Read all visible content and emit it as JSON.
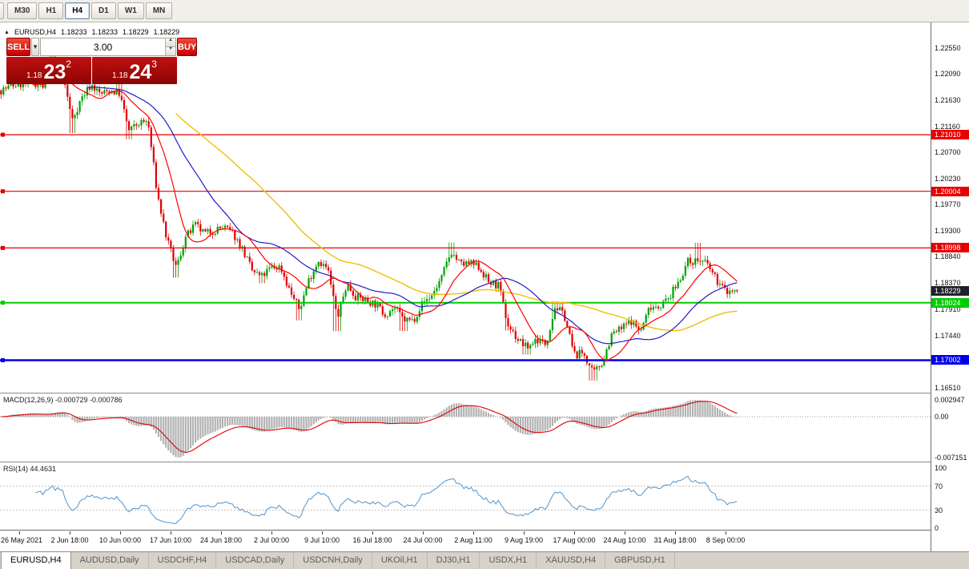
{
  "toolbar": {
    "timeframes": [
      {
        "label": "M30",
        "active": false
      },
      {
        "label": "H1",
        "active": false
      },
      {
        "label": "H4",
        "active": true
      },
      {
        "label": "D1",
        "active": false
      },
      {
        "label": "W1",
        "active": false
      },
      {
        "label": "MN",
        "active": false
      }
    ]
  },
  "chart": {
    "header": {
      "collapse_icon": "▲",
      "symbol_tf": "EURUSD,H4",
      "open": "1.18233",
      "high": "1.18233",
      "low": "1.18229",
      "close": "1.18229"
    },
    "trade_panel": {
      "sell_label": "SELL",
      "buy_label": "BUY",
      "lot_value": "3.00",
      "dropdown_caret": "▼",
      "step_up": "▲",
      "step_down": "▼",
      "sell_price": {
        "prefix": "1.18",
        "big": "23",
        "sup": "2"
      },
      "buy_price": {
        "prefix": "1.18",
        "big": "24",
        "sup": "3"
      }
    },
    "y_axis": [
      {
        "label": "1.22550",
        "value": 1.2255
      },
      {
        "label": "1.22090",
        "value": 1.2209
      },
      {
        "label": "1.21630",
        "value": 1.2163
      },
      {
        "label": "1.21160",
        "value": 1.2116
      },
      {
        "label": "1.20700",
        "value": 1.207
      },
      {
        "label": "1.20230",
        "value": 1.2023
      },
      {
        "label": "1.19770",
        "value": 1.1977
      },
      {
        "label": "1.19300",
        "value": 1.193
      },
      {
        "label": "1.18840",
        "value": 1.1884
      },
      {
        "label": "1.18370",
        "value": 1.1837
      },
      {
        "label": "1.17910",
        "value": 1.1791
      },
      {
        "label": "1.17440",
        "value": 1.1744
      },
      {
        "label": "1.16510",
        "value": 1.1651
      }
    ],
    "levels": [
      {
        "label": "1.21010",
        "value": 1.2101,
        "color": "#e80000",
        "width": 1.2
      },
      {
        "label": "1.20004",
        "value": 1.20004,
        "color": "#e80000",
        "width": 1.2
      },
      {
        "label": "1.18998",
        "value": 1.18998,
        "color": "#e80000",
        "width": 1.2
      },
      {
        "label": "1.18024",
        "value": 1.18024,
        "color": "#00cc00",
        "width": 2
      },
      {
        "label": "1.17002",
        "value": 1.17002,
        "color": "#0000e8",
        "width": 2.6
      }
    ],
    "current_price": {
      "label": "1.18229",
      "value": 1.18229,
      "color": "#20202c"
    },
    "x_axis_labels": [
      "26 May 2021",
      "2 Jun 18:00",
      "10 Jun 00:00",
      "17 Jun 10:00",
      "24 Jun 18:00",
      "2 Jul 00:00",
      "9 Jul 10:00",
      "16 Jul 18:00",
      "24 Jul 00:00",
      "2 Aug 11:00",
      "9 Aug 19:00",
      "17 Aug 00:00",
      "24 Aug 10:00",
      "31 Aug 18:00",
      "8 Sep 00:00"
    ]
  },
  "macd_panel": {
    "label": "MACD(12,26,9) -0.000729 -0.000786",
    "axis": [
      {
        "label": "0.002947",
        "value": 0.002947
      },
      {
        "label": "0.00",
        "value": 0
      },
      {
        "label": "-0.007151",
        "value": -0.007151
      }
    ],
    "max_value": 0.002947,
    "min_value": -0.007151,
    "hist_color": "#b2b2b2",
    "signal_color": "#e00000"
  },
  "rsi_panel": {
    "label": "RSI(14) 44.4631",
    "axis": [
      {
        "label": "100",
        "value": 100
      },
      {
        "label": "70",
        "value": 70
      },
      {
        "label": "30",
        "value": 30
      },
      {
        "label": "0",
        "value": 0
      }
    ],
    "current_value": 44.4631,
    "line_color": "#4f94cd",
    "level_lines": [
      70,
      30
    ]
  },
  "tabs": [
    {
      "label": "EURUSD,H4",
      "active": true
    },
    {
      "label": "AUDUSD,Daily",
      "active": false
    },
    {
      "label": "USDCHF,H4",
      "active": false
    },
    {
      "label": "USDCAD,Daily",
      "active": false
    },
    {
      "label": "USDCNH,Daily",
      "active": false
    },
    {
      "label": "UKOil,H1",
      "active": false
    },
    {
      "label": "DJ30,H1",
      "active": false
    },
    {
      "label": "USDX,H1",
      "active": false
    },
    {
      "label": "XAUUSD,H4",
      "active": false
    },
    {
      "label": "GBPUSD,H1",
      "active": false
    }
  ],
  "chart_data": {
    "type": "candlestick",
    "symbol": "EURUSD",
    "timeframe": "H4",
    "visible_price_range": [
      1.1641,
      1.2301
    ],
    "candle_count": 300,
    "last_close": 1.18229,
    "bull_color": "#00a000",
    "bear_color": "#e00000",
    "ma_colors": {
      "fast": "#ff0000",
      "medium": "#1e1ec8",
      "slow": "#f0c000"
    },
    "horizontal_levels": [
      1.2101,
      1.20004,
      1.18998,
      1.18024,
      1.17002
    ],
    "daily_closes": [
      [
        -1.5,
        1.218
      ],
      [
        0,
        1.219
      ],
      [
        1,
        1.2191
      ],
      [
        2,
        1.2193
      ],
      [
        3,
        1.2186
      ],
      [
        4,
        1.2212
      ],
      [
        5,
        1.2211
      ],
      [
        6,
        1.2127
      ],
      [
        7,
        1.2166
      ],
      [
        8,
        1.219
      ],
      [
        9,
        1.2173
      ],
      [
        10,
        1.218
      ],
      [
        11,
        1.2175
      ],
      [
        12,
        1.2108
      ],
      [
        13,
        1.2121
      ],
      [
        14,
        1.2125
      ],
      [
        15,
        1.1995
      ],
      [
        16,
        1.1915
      ],
      [
        17,
        1.1864
      ],
      [
        18,
        1.1919
      ],
      [
        19,
        1.194
      ],
      [
        20,
        1.1925
      ],
      [
        21,
        1.1931
      ],
      [
        22,
        1.1937
      ],
      [
        23,
        1.1925
      ],
      [
        24,
        1.1897
      ],
      [
        25,
        1.1859
      ],
      [
        26,
        1.1848
      ],
      [
        27,
        1.1865
      ],
      [
        28,
        1.1866
      ],
      [
        29,
        1.1823
      ],
      [
        30,
        1.179
      ],
      [
        31,
        1.1844
      ],
      [
        32,
        1.1878
      ],
      [
        33,
        1.1861
      ],
      [
        34,
        1.1775
      ],
      [
        35,
        1.1836
      ],
      [
        36,
        1.1812
      ],
      [
        37,
        1.1807
      ],
      [
        38,
        1.18
      ],
      [
        39,
        1.1782
      ],
      [
        40,
        1.1794
      ],
      [
        41,
        1.1772
      ],
      [
        42,
        1.1771
      ],
      [
        43,
        1.1802
      ],
      [
        44,
        1.1816
      ],
      [
        45,
        1.1846
      ],
      [
        46,
        1.1894
      ],
      [
        47,
        1.187
      ],
      [
        48,
        1.1872
      ],
      [
        49,
        1.1865
      ],
      [
        50,
        1.1838
      ],
      [
        51,
        1.1833
      ],
      [
        52,
        1.1763
      ],
      [
        53,
        1.1738
      ],
      [
        54,
        1.1722
      ],
      [
        55,
        1.1738
      ],
      [
        56,
        1.1729
      ],
      [
        57,
        1.1797
      ],
      [
        58,
        1.1778
      ],
      [
        59,
        1.171
      ],
      [
        60,
        1.1713
      ],
      [
        61,
        1.1675
      ],
      [
        62,
        1.1698
      ],
      [
        63,
        1.1747
      ],
      [
        64,
        1.1756
      ],
      [
        65,
        1.1771
      ],
      [
        66,
        1.1751
      ],
      [
        67,
        1.1797
      ],
      [
        68,
        1.1797
      ],
      [
        69,
        1.181
      ],
      [
        70,
        1.184
      ],
      [
        71,
        1.1875
      ],
      [
        72,
        1.1878
      ],
      [
        73,
        1.1872
      ],
      [
        74,
        1.1843
      ],
      [
        75,
        1.18229
      ]
    ],
    "spike_highs": [
      [
        4,
        1.22545
      ],
      [
        11,
        1.2195
      ],
      [
        46,
        1.19095
      ],
      [
        57,
        1.18045
      ],
      [
        72,
        1.1909
      ]
    ],
    "spike_lows": [
      [
        6,
        1.2104
      ],
      [
        12,
        1.2093
      ],
      [
        17,
        1.1847
      ],
      [
        26,
        1.1837
      ],
      [
        30,
        1.1771
      ],
      [
        34,
        1.1752
      ],
      [
        41,
        1.1752
      ],
      [
        52,
        1.1753
      ],
      [
        54,
        1.171
      ],
      [
        61,
        1.1664
      ]
    ]
  }
}
